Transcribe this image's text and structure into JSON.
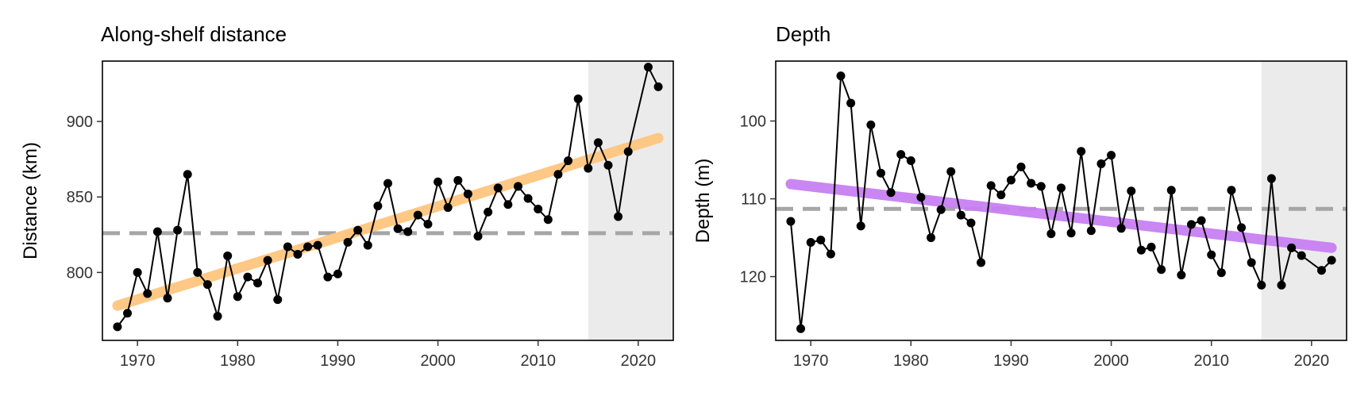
{
  "chart_data": [
    {
      "type": "line",
      "title": "Along-shelf distance",
      "xlabel": "",
      "ylabel": "Distance (km)",
      "xlim": [
        1966.5,
        2023.5
      ],
      "ylim": [
        755,
        940
      ],
      "x_ticks": [
        1970,
        1980,
        1990,
        2000,
        2010,
        2020
      ],
      "y_ticks": [
        800,
        850,
        900
      ],
      "y_reversed": false,
      "grid": false,
      "shaded_region": {
        "x_start": 2015,
        "x_end": 2023.5,
        "color": "#ebebeb"
      },
      "reference_line": {
        "y": 826,
        "style": "dashed",
        "color": "#a6a6a6"
      },
      "trend": {
        "x": [
          1968,
          2022
        ],
        "y": [
          778,
          889
        ],
        "color": "#ffc67f"
      },
      "points_color": "#000000",
      "x": [
        1968,
        1969,
        1970,
        1971,
        1972,
        1973,
        1974,
        1975,
        1976,
        1977,
        1978,
        1979,
        1980,
        1981,
        1982,
        1983,
        1984,
        1985,
        1986,
        1987,
        1988,
        1989,
        1990,
        1991,
        1992,
        1993,
        1994,
        1995,
        1996,
        1997,
        1998,
        1999,
        2000,
        2001,
        2002,
        2003,
        2004,
        2005,
        2006,
        2007,
        2008,
        2009,
        2010,
        2011,
        2012,
        2013,
        2014,
        2015,
        2016,
        2017,
        2018,
        2019,
        2021,
        2022
      ],
      "y": [
        764,
        773,
        800,
        786,
        827,
        783,
        828,
        865,
        800,
        792,
        771,
        811,
        784,
        797,
        793,
        808,
        782,
        817,
        812,
        817,
        818,
        797,
        799,
        820,
        828,
        818,
        844,
        859,
        829,
        827,
        838,
        832,
        860,
        843,
        861,
        852,
        824,
        840,
        856,
        845,
        857,
        849,
        842,
        835,
        865,
        874,
        915,
        869,
        886,
        871,
        837,
        880,
        936,
        923
      ]
    },
    {
      "type": "line",
      "title": "Depth",
      "xlabel": "",
      "ylabel": "Depth (m)",
      "xlim": [
        1966.5,
        2023.5
      ],
      "ylim": [
        92.3,
        128.2
      ],
      "x_ticks": [
        1970,
        1980,
        1990,
        2000,
        2010,
        2020
      ],
      "y_ticks": [
        100,
        110,
        120
      ],
      "y_reversed": true,
      "grid": false,
      "shaded_region": {
        "x_start": 2015,
        "x_end": 2023.5,
        "color": "#ebebeb"
      },
      "reference_line": {
        "y": 111.3,
        "style": "dashed",
        "color": "#a6a6a6"
      },
      "trend": {
        "x": [
          1968,
          2022
        ],
        "y": [
          108.1,
          116.3
        ],
        "color": "#c880f2"
      },
      "points_color": "#000000",
      "x": [
        1968,
        1969,
        1970,
        1971,
        1972,
        1973,
        1974,
        1975,
        1976,
        1977,
        1978,
        1979,
        1980,
        1981,
        1982,
        1983,
        1984,
        1985,
        1986,
        1987,
        1988,
        1989,
        1990,
        1991,
        1992,
        1993,
        1994,
        1995,
        1996,
        1997,
        1998,
        1999,
        2000,
        2001,
        2002,
        2003,
        2004,
        2005,
        2006,
        2007,
        2008,
        2009,
        2010,
        2011,
        2012,
        2013,
        2014,
        2015,
        2016,
        2017,
        2018,
        2019,
        2021,
        2022
      ],
      "y": [
        112.9,
        126.7,
        115.6,
        115.3,
        117.1,
        94.2,
        97.7,
        113.5,
        100.5,
        106.7,
        109.2,
        104.3,
        105.1,
        109.8,
        115,
        111.4,
        106.5,
        112.1,
        113.1,
        118.2,
        108.3,
        109.5,
        107.6,
        105.9,
        108,
        108.4,
        114.5,
        108.6,
        114.4,
        103.9,
        114.1,
        105.5,
        104.4,
        113.8,
        109,
        116.6,
        116.2,
        119.1,
        108.9,
        119.8,
        113.3,
        112.8,
        117.2,
        119.5,
        108.9,
        113.7,
        118.2,
        121.1,
        107.4,
        121.1,
        116.3,
        117.3,
        119.2,
        117.9
      ]
    }
  ]
}
